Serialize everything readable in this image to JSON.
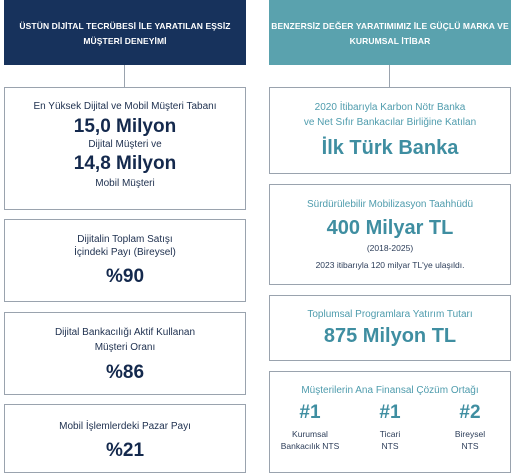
{
  "left": {
    "header": [
      "ÜSTÜN DİJİTAL TECRÜBESİ İLE YARATILAN",
      "EŞSİZ MÜŞTERİ DENEYİMİ"
    ],
    "card1": {
      "label1": "En Yüksek Dijital ve Mobil Müşteri Tabanı",
      "value1": "15,0 Milyon",
      "label2": "Dijital Müşteri ve",
      "value2": "14,8 Milyon",
      "label3": "Mobil Müşteri"
    },
    "card2": {
      "label1": "Dijitalin Toplam Satışı",
      "label2": "İçindeki Payı (Bireysel)",
      "value": "%90"
    },
    "card3": {
      "label1": "Dijital Bankacılığı Aktif Kullanan",
      "label2": "Müşteri Oranı",
      "value": "%86"
    },
    "card4": {
      "label": "Mobil İşlemlerdeki Pazar Payı",
      "value": "%21"
    }
  },
  "right": {
    "header": [
      "BENZERSİZ DEĞER YARATIMIMIZ İLE",
      "GÜÇLÜ MARKA VE KURUMSAL İTİBAR"
    ],
    "card1": {
      "label1": "2020 İtibarıyla Karbon Nötr Banka",
      "label2": "ve Net Sıfır Bankacılar Birliğine Katılan",
      "value": "İlk Türk Banka"
    },
    "card2": {
      "label": "Sürdürülebilir Mobilizasyon Taahhüdü",
      "value": "400 Milyar TL",
      "period": "(2018-2025)",
      "note": "2023 itibarıyla 120 milyar TL'ye ulaşıldı."
    },
    "card3": {
      "label": "Toplumsal Programlara Yatırım Tutarı",
      "value": "875 Milyon TL"
    },
    "card4": {
      "label": "Müşterilerin Ana Finansal Çözüm Ortağı",
      "ranks": [
        {
          "num": "#1",
          "line1": "Kurumsal",
          "line2": "Bankacılık NTS"
        },
        {
          "num": "#1",
          "line1": "Ticari",
          "line2": "NTS"
        },
        {
          "num": "#2",
          "line1": "Bireysel",
          "line2": "NTS"
        }
      ]
    }
  }
}
